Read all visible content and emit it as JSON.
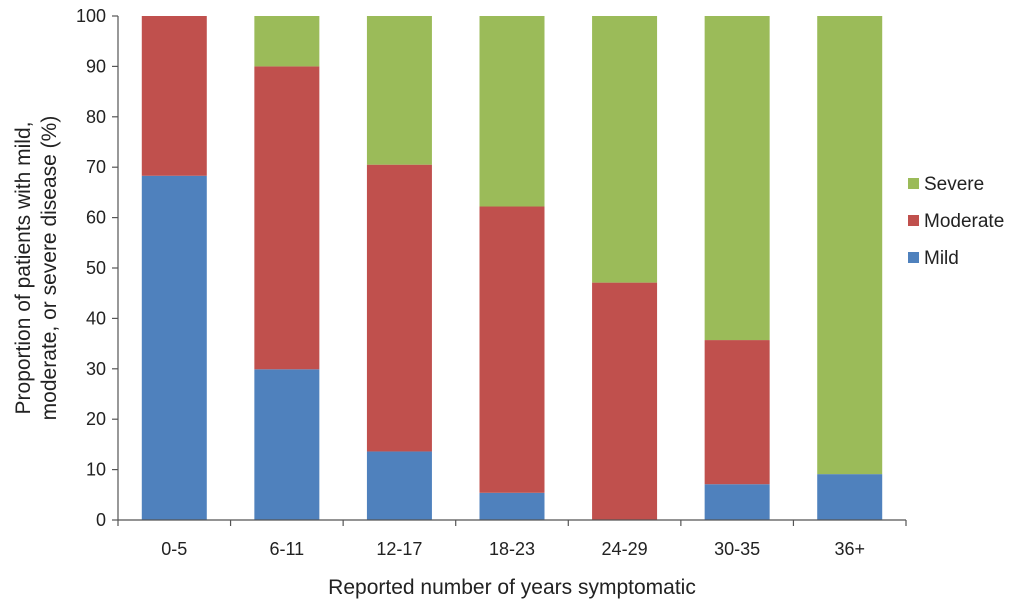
{
  "chart_data": {
    "type": "bar",
    "stacked": true,
    "title": "",
    "xlabel": "Reported number of years symptomatic",
    "ylabel_lines": [
      "Proportion of patients with mild,",
      "moderate, or severe disease (%)"
    ],
    "ylim": [
      0,
      100
    ],
    "yticks": [
      "0",
      "10",
      "20",
      "30",
      "40",
      "50",
      "60",
      "70",
      "80",
      "90",
      "100"
    ],
    "grid": false,
    "legend_position": "right",
    "categories": [
      "0-5",
      "6-11",
      "12-17",
      "18-23",
      "24-29",
      "30-35",
      "36+"
    ],
    "series": [
      {
        "name": "Mild",
        "color": "#4f81bd",
        "values": [
          68.3,
          29.9,
          13.6,
          5.4,
          0,
          7.1,
          9.1
        ]
      },
      {
        "name": "Moderate",
        "color": "#c0504d",
        "values": [
          31.7,
          60.1,
          56.9,
          56.8,
          47.1,
          28.6,
          0
        ]
      },
      {
        "name": "Severe",
        "color": "#9bbb59",
        "values": [
          0,
          10.0,
          29.5,
          37.8,
          52.9,
          64.3,
          90.9
        ]
      }
    ],
    "legend_order": [
      "Severe",
      "Moderate",
      "Mild"
    ]
  }
}
